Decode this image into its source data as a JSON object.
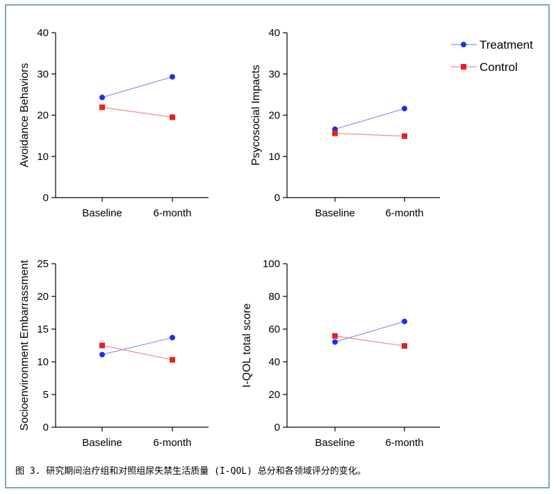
{
  "caption": "图 3. 研究期间治疗组和对照组尿失禁生活质量 (I-QOL) 总分和各领域评分的变化。",
  "colors": {
    "treatment": "#1f2ee8",
    "treatment_line": "#8a90f0",
    "control": "#e8201f",
    "control_line": "#f08a8a"
  },
  "legend": {
    "treatment_label": "Treatment",
    "control_label": "Control"
  },
  "chart_data": [
    {
      "type": "line",
      "ylabel": "Avoidance Behaviors",
      "categories": [
        "Baseline",
        "6-month"
      ],
      "ylim": [
        0,
        40
      ],
      "yticks": [
        0,
        10,
        20,
        30,
        40
      ],
      "series": [
        {
          "name": "Treatment",
          "values": [
            24.3,
            29.3
          ]
        },
        {
          "name": "Control",
          "values": [
            21.9,
            19.5
          ]
        }
      ]
    },
    {
      "type": "line",
      "ylabel": "Psycosocial Impacts",
      "categories": [
        "Baseline",
        "6-month"
      ],
      "ylim": [
        0,
        40
      ],
      "yticks": [
        0,
        10,
        20,
        30,
        40
      ],
      "series": [
        {
          "name": "Treatment",
          "values": [
            16.6,
            21.6
          ]
        },
        {
          "name": "Control",
          "values": [
            15.6,
            14.9
          ]
        }
      ]
    },
    {
      "type": "line",
      "ylabel": "Socioenvironment Embarrassment",
      "categories": [
        "Baseline",
        "6-month"
      ],
      "ylim": [
        0,
        25
      ],
      "yticks": [
        0,
        5,
        10,
        15,
        20,
        25
      ],
      "series": [
        {
          "name": "Treatment",
          "values": [
            11.1,
            13.7
          ]
        },
        {
          "name": "Control",
          "values": [
            12.5,
            10.3
          ]
        }
      ]
    },
    {
      "type": "line",
      "ylabel": "I-QOL total score",
      "categories": [
        "Baseline",
        "6-month"
      ],
      "ylim": [
        0,
        100
      ],
      "yticks": [
        0,
        20,
        40,
        60,
        80,
        100
      ],
      "series": [
        {
          "name": "Treatment",
          "values": [
            52.1,
            64.7
          ]
        },
        {
          "name": "Control",
          "values": [
            55.8,
            49.7
          ]
        }
      ]
    }
  ]
}
